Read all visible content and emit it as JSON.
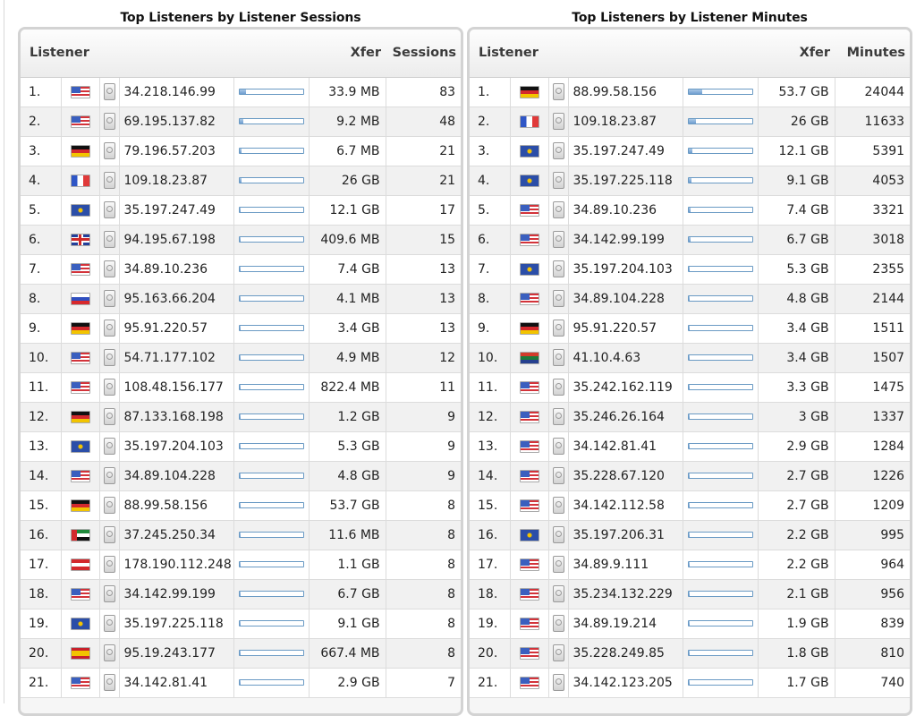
{
  "sessions": {
    "title": "Top Listeners by Listener Sessions",
    "headers": {
      "listener": "Listener",
      "xfer": "Xfer",
      "count": "Sessions"
    },
    "rows": [
      {
        "rank": "1.",
        "flag": "us",
        "ip": "34.218.146.99",
        "xfer": "33.9 MB",
        "count": "83",
        "share": 0.1
      },
      {
        "rank": "2.",
        "flag": "us",
        "ip": "69.195.137.82",
        "xfer": "9.2 MB",
        "count": "48",
        "share": 0.06
      },
      {
        "rank": "3.",
        "flag": "de",
        "ip": "79.196.57.203",
        "xfer": "6.7 MB",
        "count": "21",
        "share": 0.03
      },
      {
        "rank": "4.",
        "flag": "fr",
        "ip": "109.18.23.87",
        "xfer": "26 GB",
        "count": "21",
        "share": 0.03
      },
      {
        "rank": "5.",
        "flag": "eu",
        "ip": "35.197.247.49",
        "xfer": "12.1 GB",
        "count": "17",
        "share": 0.02
      },
      {
        "rank": "6.",
        "flag": "gb",
        "ip": "94.195.67.198",
        "xfer": "409.6 MB",
        "count": "15",
        "share": 0.02
      },
      {
        "rank": "7.",
        "flag": "us",
        "ip": "34.89.10.236",
        "xfer": "7.4 GB",
        "count": "13",
        "share": 0.02
      },
      {
        "rank": "8.",
        "flag": "ru",
        "ip": "95.163.66.204",
        "xfer": "4.1 MB",
        "count": "13",
        "share": 0.02
      },
      {
        "rank": "9.",
        "flag": "de",
        "ip": "95.91.220.57",
        "xfer": "3.4 GB",
        "count": "13",
        "share": 0.02
      },
      {
        "rank": "10.",
        "flag": "us",
        "ip": "54.71.177.102",
        "xfer": "4.9 MB",
        "count": "12",
        "share": 0.015
      },
      {
        "rank": "11.",
        "flag": "us",
        "ip": "108.48.156.177",
        "xfer": "822.4 MB",
        "count": "11",
        "share": 0.015
      },
      {
        "rank": "12.",
        "flag": "de",
        "ip": "87.133.168.198",
        "xfer": "1.2 GB",
        "count": "9",
        "share": 0.01
      },
      {
        "rank": "13.",
        "flag": "eu",
        "ip": "35.197.204.103",
        "xfer": "5.3 GB",
        "count": "9",
        "share": 0.01
      },
      {
        "rank": "14.",
        "flag": "us",
        "ip": "34.89.104.228",
        "xfer": "4.8 GB",
        "count": "9",
        "share": 0.01
      },
      {
        "rank": "15.",
        "flag": "de",
        "ip": "88.99.58.156",
        "xfer": "53.7 GB",
        "count": "8",
        "share": 0.01
      },
      {
        "rank": "16.",
        "flag": "ae",
        "ip": "37.245.250.34",
        "xfer": "11.6 MB",
        "count": "8",
        "share": 0.01
      },
      {
        "rank": "17.",
        "flag": "at",
        "ip": "178.190.112.248",
        "xfer": "1.1 GB",
        "count": "8",
        "share": 0.01
      },
      {
        "rank": "18.",
        "flag": "us",
        "ip": "34.142.99.199",
        "xfer": "6.7 GB",
        "count": "8",
        "share": 0.01
      },
      {
        "rank": "19.",
        "flag": "eu",
        "ip": "35.197.225.118",
        "xfer": "9.1 GB",
        "count": "8",
        "share": 0.01
      },
      {
        "rank": "20.",
        "flag": "es",
        "ip": "95.19.243.177",
        "xfer": "667.4 MB",
        "count": "8",
        "share": 0.01
      },
      {
        "rank": "21.",
        "flag": "us",
        "ip": "34.142.81.41",
        "xfer": "2.9 GB",
        "count": "7",
        "share": 0.01
      }
    ]
  },
  "minutes": {
    "title": "Top Listeners by Listener Minutes",
    "headers": {
      "listener": "Listener",
      "xfer": "Xfer",
      "count": "Minutes"
    },
    "rows": [
      {
        "rank": "1.",
        "flag": "de",
        "ip": "88.99.58.156",
        "xfer": "53.7 GB",
        "count": "24044",
        "share": 0.22
      },
      {
        "rank": "2.",
        "flag": "fr",
        "ip": "109.18.23.87",
        "xfer": "26 GB",
        "count": "11633",
        "share": 0.12
      },
      {
        "rank": "3.",
        "flag": "eu",
        "ip": "35.197.247.49",
        "xfer": "12.1 GB",
        "count": "5391",
        "share": 0.06
      },
      {
        "rank": "4.",
        "flag": "eu",
        "ip": "35.197.225.118",
        "xfer": "9.1 GB",
        "count": "4053",
        "share": 0.05
      },
      {
        "rank": "5.",
        "flag": "us",
        "ip": "34.89.10.236",
        "xfer": "7.4 GB",
        "count": "3321",
        "share": 0.04
      },
      {
        "rank": "6.",
        "flag": "us",
        "ip": "34.142.99.199",
        "xfer": "6.7 GB",
        "count": "3018",
        "share": 0.03
      },
      {
        "rank": "7.",
        "flag": "eu",
        "ip": "35.197.204.103",
        "xfer": "5.3 GB",
        "count": "2355",
        "share": 0.025
      },
      {
        "rank": "8.",
        "flag": "us",
        "ip": "34.89.104.228",
        "xfer": "4.8 GB",
        "count": "2144",
        "share": 0.02
      },
      {
        "rank": "9.",
        "flag": "de",
        "ip": "95.91.220.57",
        "xfer": "3.4 GB",
        "count": "1511",
        "share": 0.015
      },
      {
        "rank": "10.",
        "flag": "za",
        "ip": "41.10.4.63",
        "xfer": "3.4 GB",
        "count": "1507",
        "share": 0.015
      },
      {
        "rank": "11.",
        "flag": "us",
        "ip": "35.242.162.119",
        "xfer": "3.3 GB",
        "count": "1475",
        "share": 0.015
      },
      {
        "rank": "12.",
        "flag": "us",
        "ip": "35.246.26.164",
        "xfer": "3 GB",
        "count": "1337",
        "share": 0.015
      },
      {
        "rank": "13.",
        "flag": "us",
        "ip": "34.142.81.41",
        "xfer": "2.9 GB",
        "count": "1284",
        "share": 0.013
      },
      {
        "rank": "14.",
        "flag": "us",
        "ip": "35.228.67.120",
        "xfer": "2.7 GB",
        "count": "1226",
        "share": 0.012
      },
      {
        "rank": "15.",
        "flag": "us",
        "ip": "34.142.112.58",
        "xfer": "2.7 GB",
        "count": "1209",
        "share": 0.012
      },
      {
        "rank": "16.",
        "flag": "eu",
        "ip": "35.197.206.31",
        "xfer": "2.2 GB",
        "count": "995",
        "share": 0.01
      },
      {
        "rank": "17.",
        "flag": "us",
        "ip": "34.89.9.111",
        "xfer": "2.2 GB",
        "count": "964",
        "share": 0.01
      },
      {
        "rank": "18.",
        "flag": "us",
        "ip": "35.234.132.229",
        "xfer": "2.1 GB",
        "count": "956",
        "share": 0.01
      },
      {
        "rank": "19.",
        "flag": "us",
        "ip": "34.89.19.214",
        "xfer": "1.9 GB",
        "count": "839",
        "share": 0.01
      },
      {
        "rank": "20.",
        "flag": "us",
        "ip": "35.228.249.85",
        "xfer": "1.8 GB",
        "count": "810",
        "share": 0.01
      },
      {
        "rank": "21.",
        "flag": "us",
        "ip": "34.142.123.205",
        "xfer": "1.7 GB",
        "count": "740",
        "share": 0.01
      }
    ]
  }
}
